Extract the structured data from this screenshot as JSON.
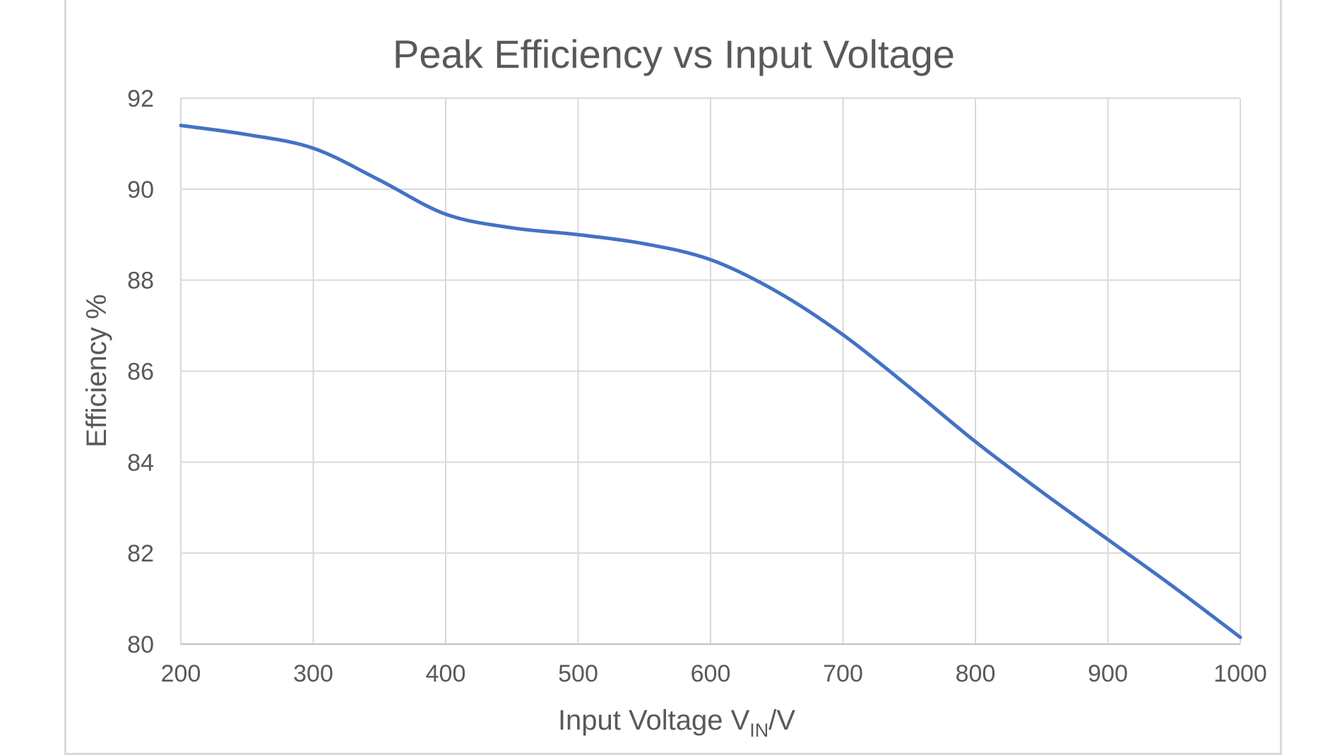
{
  "chart_data": {
    "type": "line",
    "title": "Peak Efficiency vs Input Voltage",
    "xlabel_main": "Input Voltage V",
    "xlabel_sub": "IN",
    "xlabel_suffix": "/V",
    "ylabel": "Efficiency %",
    "xlim": [
      200,
      1000
    ],
    "ylim": [
      80,
      92
    ],
    "xticks": [
      200,
      300,
      400,
      500,
      600,
      700,
      800,
      900,
      1000
    ],
    "yticks": [
      80,
      82,
      84,
      86,
      88,
      90,
      92
    ],
    "grid": true,
    "series": [
      {
        "name": "Efficiency",
        "color": "#4472c4",
        "x": [
          200,
          250,
          300,
          350,
          400,
          450,
          500,
          550,
          600,
          650,
          700,
          750,
          800,
          850,
          900,
          950,
          1000
        ],
        "y": [
          91.4,
          91.2,
          90.9,
          90.2,
          89.45,
          89.15,
          89.0,
          88.8,
          88.45,
          87.75,
          86.8,
          85.65,
          84.45,
          83.35,
          82.3,
          81.25,
          80.15
        ]
      }
    ]
  }
}
